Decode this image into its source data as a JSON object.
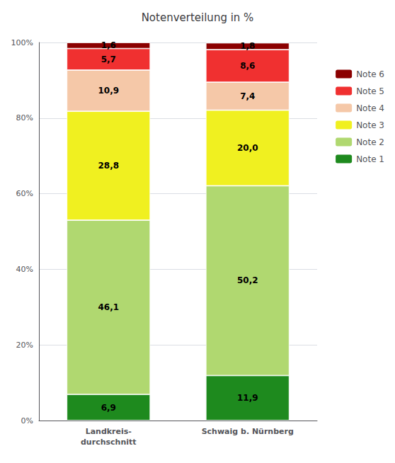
{
  "chart_data": {
    "type": "bar",
    "title": "Notenverteilung in %",
    "categories": [
      "Landkreis-\ndurchschnitt",
      "Schwaig b. Nürnberg"
    ],
    "series": [
      {
        "name": "Note 1",
        "color": "#1e8a1e",
        "values": [
          6.9,
          11.9
        ],
        "value_labels": [
          "6,9",
          "11,9"
        ]
      },
      {
        "name": "Note 2",
        "color": "#b0d870",
        "values": [
          46.1,
          50.2
        ],
        "value_labels": [
          "46,1",
          "50,2"
        ]
      },
      {
        "name": "Note 3",
        "color": "#f0f020",
        "values": [
          28.8,
          20.0
        ],
        "value_labels": [
          "28,8",
          "20,0"
        ]
      },
      {
        "name": "Note 4",
        "color": "#f5c8a8",
        "values": [
          10.9,
          7.4
        ],
        "value_labels": [
          "10,9",
          "7,4"
        ]
      },
      {
        "name": "Note 5",
        "color": "#f03030",
        "values": [
          5.7,
          8.6
        ],
        "value_labels": [
          "5,7",
          "8,6"
        ]
      },
      {
        "name": "Note 6",
        "color": "#8b0000",
        "values": [
          1.6,
          1.8
        ],
        "value_labels": [
          "1,6",
          "1,8"
        ]
      }
    ],
    "ylim": [
      0,
      100
    ],
    "yticks": [
      {
        "value": 0,
        "label": "0%"
      },
      {
        "value": 20,
        "label": "20%"
      },
      {
        "value": 40,
        "label": "40%"
      },
      {
        "value": 60,
        "label": "60%"
      },
      {
        "value": 80,
        "label": "80%"
      },
      {
        "value": 100,
        "label": "100%"
      }
    ],
    "grid": true,
    "stacked": true,
    "data_labels": true,
    "legend": "right"
  }
}
